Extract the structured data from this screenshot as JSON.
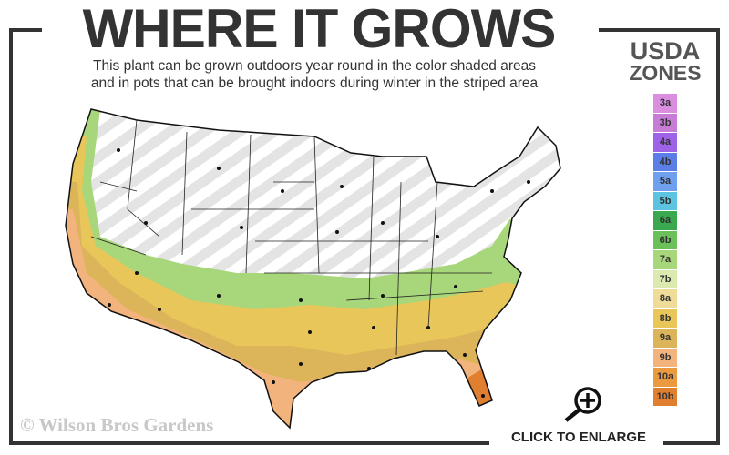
{
  "header": {
    "title": "WHERE IT GROWS",
    "subtitle_line1": "This plant can be grown outdoors year round in the color shaded areas",
    "subtitle_line2": "and in pots that can be brought indoors during winter in the striped area"
  },
  "legend": {
    "title_line1": "USDA",
    "title_line2": "ZONES",
    "zones": [
      {
        "label": "3a",
        "color": "#d98ee0"
      },
      {
        "label": "3b",
        "color": "#c77dd6"
      },
      {
        "label": "4a",
        "color": "#9e62e8"
      },
      {
        "label": "4b",
        "color": "#5a7de8"
      },
      {
        "label": "5a",
        "color": "#6fa0f0"
      },
      {
        "label": "5b",
        "color": "#5cc4e0"
      },
      {
        "label": "6a",
        "color": "#3aa84f"
      },
      {
        "label": "6b",
        "color": "#6cc05a"
      },
      {
        "label": "7a",
        "color": "#a8d67a"
      },
      {
        "label": "7b",
        "color": "#dbeab0"
      },
      {
        "label": "8a",
        "color": "#eedc98"
      },
      {
        "label": "8b",
        "color": "#e8c65a"
      },
      {
        "label": "9a",
        "color": "#dcb45a"
      },
      {
        "label": "9b",
        "color": "#f2b47c"
      },
      {
        "label": "10a",
        "color": "#ec9a40"
      },
      {
        "label": "10b",
        "color": "#e07f30"
      }
    ]
  },
  "footer": {
    "copyright": "© Wilson Bros Gardens",
    "enlarge_label": "CLICK TO ENLARGE",
    "enlarge_icon": "zoom-in-magnifier-icon"
  }
}
